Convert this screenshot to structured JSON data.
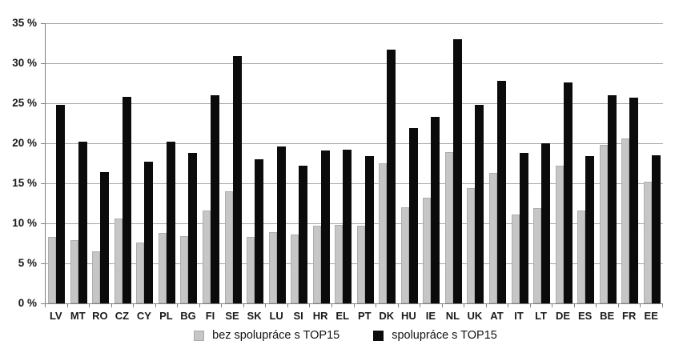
{
  "chart_data": {
    "type": "bar",
    "title": "",
    "xlabel": "",
    "ylabel": "",
    "categories": [
      "LV",
      "MT",
      "RO",
      "CZ",
      "CY",
      "PL",
      "BG",
      "FI",
      "SE",
      "SK",
      "LU",
      "SI",
      "HR",
      "EL",
      "PT",
      "DK",
      "HU",
      "IE",
      "NL",
      "UK",
      "AT",
      "IT",
      "LT",
      "DE",
      "ES",
      "BE",
      "FR",
      "EE"
    ],
    "series": [
      {
        "name": "bez spolupráce s TOP15",
        "color": "#c6c6c6",
        "values": [
          8.3,
          7.9,
          6.5,
          10.6,
          7.6,
          8.8,
          8.4,
          11.6,
          14.0,
          8.3,
          8.9,
          8.6,
          9.7,
          9.8,
          9.7,
          17.5,
          12.0,
          13.2,
          18.9,
          14.4,
          16.3,
          11.1,
          11.9,
          17.2,
          11.6,
          19.8,
          20.6,
          15.2
        ]
      },
      {
        "name": "spolupráce s TOP15",
        "color": "#0b0b0b",
        "values": [
          24.8,
          20.2,
          16.4,
          25.8,
          17.7,
          20.2,
          18.8,
          26.0,
          30.9,
          18.0,
          19.6,
          17.2,
          19.1,
          19.2,
          18.4,
          31.7,
          21.9,
          23.3,
          33.0,
          24.8,
          27.8,
          18.8,
          20.0,
          27.6,
          18.4,
          26.0,
          25.7,
          18.5
        ]
      }
    ],
    "ylim": [
      0,
      35
    ],
    "ytick_step": 5,
    "ytick_labels": [
      "0 %",
      "5 %",
      "10 %",
      "15 %",
      "20 %",
      "25 %",
      "30 %",
      "35 %"
    ],
    "grid": true,
    "legend_position": "bottom",
    "colors": {
      "background": "#ffffff",
      "gridline": "#a6a6a6",
      "axis": "#808080",
      "text": "#1a1a1a",
      "series0": "#c6c6c6",
      "series1": "#0b0b0b"
    }
  }
}
